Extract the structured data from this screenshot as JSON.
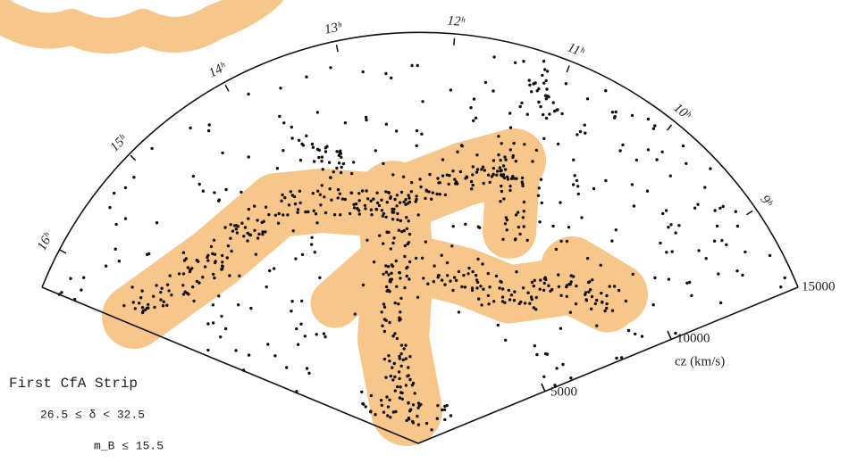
{
  "hour_labels": [
    "16ʰ",
    "15ʰ",
    "14ʰ",
    "13ʰ",
    "12ʰ",
    "11ʰ",
    "10ʰ",
    "9ʰ"
  ],
  "distance_labels": [
    "5000",
    "10000",
    "15000"
  ],
  "axis_label": "cz (km/s)",
  "caption": {
    "title": "First CfA Strip",
    "line1": "26.5  ≤  δ <  32.5",
    "line2": "m_B ≤     15.5"
  }
}
